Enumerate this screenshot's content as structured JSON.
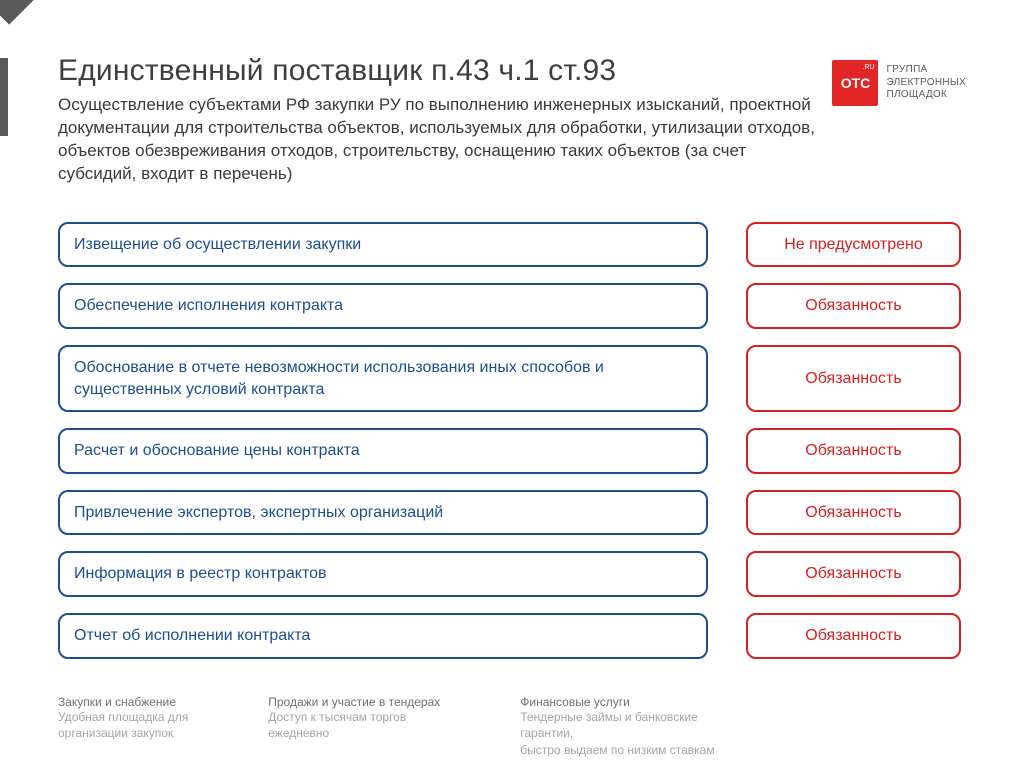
{
  "colors": {
    "title": "#3e3e3e",
    "subtitle": "#3a3a3a",
    "border_blue": "#1d4e8f",
    "text_blue": "#1d4e8f",
    "border_red": "#d81f1f",
    "text_red": "#d81f1f",
    "footer_head": "#6f6f6f",
    "footer_body": "#a4a4a4",
    "logo_bg": "#e22626",
    "logo_text": "#595959"
  },
  "header": {
    "title": "Единственный поставщик п.43 ч.1 ст.93",
    "subtitle": "Осуществление субъектами РФ закупки РУ по выполнению инженерных изысканий, проектной документации для строительства объектов, используемых для обработки, утилизации отходов, объектов обезвреживания отходов, строительству, оснащению таких объектов (за счет субсидий, входит в перечень)"
  },
  "logo": {
    "badge": "OTC",
    "badge_corner": ".RU",
    "line1": "ГРУППА",
    "line2": "ЭЛЕКТРОННЫХ",
    "line3": "ПЛОЩАДОК"
  },
  "rows": [
    {
      "left": "Извещение об осуществлении закупки",
      "right": "Не предусмотрено"
    },
    {
      "left": "Обеспечение исполнения контракта",
      "right": "Обязанность"
    },
    {
      "left": "Обоснование в отчете невозможности использования иных способов и существенных условий контракта",
      "right": "Обязанность"
    },
    {
      "left": "Расчет и обоснование цены контракта",
      "right": "Обязанность"
    },
    {
      "left": "Привлечение экспертов, экспертных организаций",
      "right": "Обязанность"
    },
    {
      "left": "Информация в реестр контрактов",
      "right": "Обязанность"
    },
    {
      "left": "Отчет об исполнении контракта",
      "right": "Обязанность"
    }
  ],
  "footer": [
    {
      "head": "Закупки и снабжение",
      "l1": "Удобная площадка для",
      "l2": "организации закупок"
    },
    {
      "head": "Продажи и участие в тендерах",
      "l1": "Доступ к тысячам торгов",
      "l2": "ежедневно"
    },
    {
      "head": "Финансовые услуги",
      "l1": "Тендерные займы и банковские",
      "l2": "гарантии,",
      "l3": "быстро выдаем по низким ставкам"
    }
  ]
}
